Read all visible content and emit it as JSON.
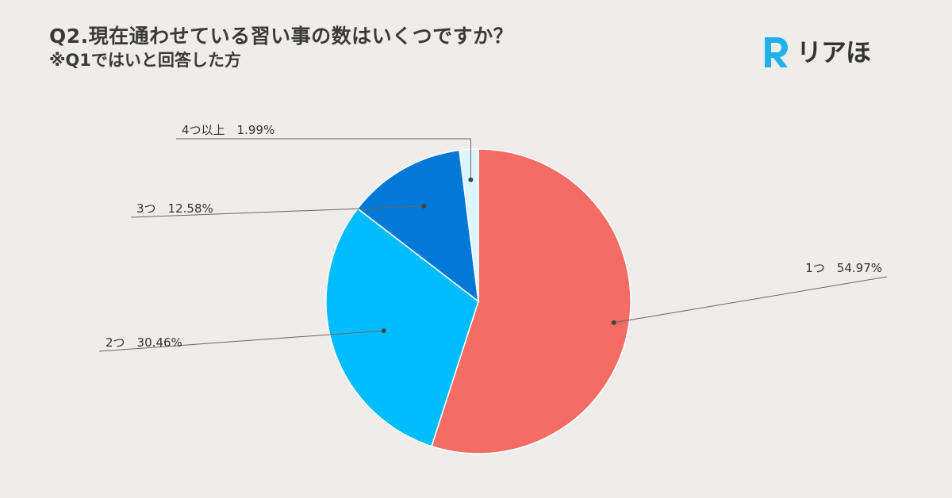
{
  "header": {
    "title": "Q2.現在通わせている習い事の数はいくつですか？",
    "subtitle": "※Q1ではいと回答した方"
  },
  "logo": {
    "mark": "R",
    "text": "リアほ",
    "mark_color": "#1fb1ea"
  },
  "chart_data": {
    "type": "pie",
    "categories": [
      "1つ",
      "2つ",
      "3つ",
      "4つ以上"
    ],
    "values": [
      54.97,
      30.46,
      12.58,
      1.99
    ],
    "unit": "%",
    "labels": [
      "1つ　54.97%",
      "2つ　30.46%",
      "3つ　12.58%",
      "4つ以上　1.99%"
    ],
    "colors": [
      "#f46c63",
      "#00bdff",
      "#0079d6",
      "#ddf5fe"
    ],
    "start": "12 o'clock",
    "direction": "clockwise"
  }
}
